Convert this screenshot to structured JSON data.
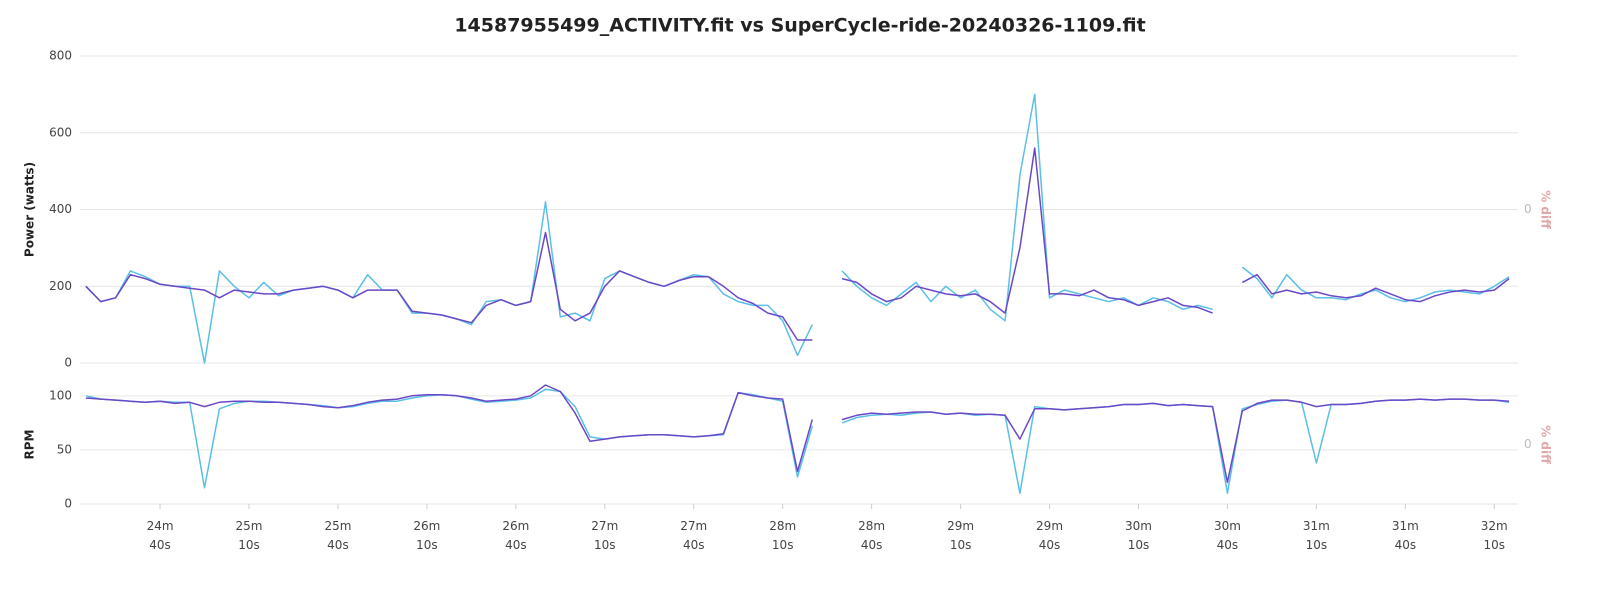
{
  "chart_data": [
    {
      "type": "line",
      "title": "14587955499_ACTIVITY.fit vs SuperCycle-ride-20240326-1109.fit",
      "y_label": "Power (watts)",
      "y2_label": "% diff",
      "x": [
        1455,
        1460,
        1465,
        1470,
        1475,
        1480,
        1485,
        1490,
        1495,
        1500,
        1505,
        1510,
        1515,
        1520,
        1525,
        1530,
        1535,
        1540,
        1545,
        1550,
        1555,
        1560,
        1565,
        1570,
        1575,
        1580,
        1585,
        1590,
        1595,
        1600,
        1605,
        1610,
        1615,
        1620,
        1625,
        1630,
        1635,
        1640,
        1645,
        1650,
        1655,
        1660,
        1665,
        1670,
        1675,
        1680,
        1685,
        1690,
        1695,
        1700,
        1705,
        1710,
        1715,
        1720,
        1725,
        1730,
        1735,
        1740,
        1745,
        1750,
        1755,
        1760,
        1765,
        1770,
        1775,
        1780,
        1785,
        1790,
        1795,
        1800,
        1805,
        1810,
        1815,
        1820,
        1825,
        1830,
        1835,
        1840,
        1845,
        1850,
        1855,
        1860,
        1865,
        1870,
        1875,
        1880,
        1885,
        1890,
        1895,
        1900,
        1905,
        1910,
        1915,
        1920,
        1925,
        1930,
        1935
      ],
      "series": [
        {
          "color": "#5bbfe6",
          "values": [
            200,
            160,
            170,
            240,
            225,
            205,
            200,
            200,
            0,
            240,
            200,
            170,
            210,
            175,
            190,
            195,
            200,
            190,
            170,
            230,
            190,
            190,
            130,
            130,
            125,
            115,
            100,
            160,
            165,
            150,
            160,
            420,
            120,
            130,
            110,
            220,
            240,
            225,
            210,
            200,
            215,
            230,
            225,
            180,
            160,
            150,
            150,
            110,
            20,
            100,
            null,
            240,
            200,
            170,
            150,
            180,
            210,
            160,
            200,
            170,
            190,
            140,
            110,
            490,
            700,
            170,
            190,
            180,
            170,
            160,
            170,
            150,
            170,
            160,
            140,
            150,
            140,
            null,
            250,
            220,
            170,
            230,
            190,
            170,
            170,
            165,
            180,
            190,
            170,
            160,
            170,
            185,
            190,
            185,
            180,
            200,
            225
          ]
        },
        {
          "color": "#6b48c8",
          "values": [
            200,
            160,
            170,
            230,
            220,
            205,
            200,
            195,
            190,
            170,
            190,
            185,
            180,
            180,
            190,
            195,
            200,
            190,
            170,
            190,
            190,
            190,
            135,
            130,
            125,
            115,
            105,
            150,
            165,
            150,
            160,
            340,
            140,
            110,
            130,
            200,
            240,
            225,
            210,
            200,
            215,
            225,
            225,
            200,
            170,
            155,
            130,
            120,
            60,
            60,
            null,
            220,
            210,
            180,
            160,
            170,
            200,
            190,
            180,
            175,
            180,
            160,
            130,
            300,
            560,
            180,
            180,
            175,
            190,
            170,
            165,
            150,
            160,
            170,
            150,
            145,
            130,
            null,
            210,
            230,
            180,
            190,
            180,
            185,
            175,
            170,
            175,
            195,
            180,
            165,
            160,
            175,
            185,
            190,
            185,
            190,
            220
          ]
        }
      ],
      "xlim": [
        1453,
        1938
      ],
      "ylim": [
        0,
        800
      ],
      "yticks": [
        0,
        200,
        400,
        600,
        800
      ],
      "y2lim": [
        -100,
        100
      ],
      "y2ticks": [
        0
      ],
      "grid": true
    },
    {
      "type": "line",
      "y_label": "RPM",
      "y2_label": "% diff",
      "x": [
        1455,
        1460,
        1465,
        1470,
        1475,
        1480,
        1485,
        1490,
        1495,
        1500,
        1505,
        1510,
        1515,
        1520,
        1525,
        1530,
        1535,
        1540,
        1545,
        1550,
        1555,
        1560,
        1565,
        1570,
        1575,
        1580,
        1585,
        1590,
        1595,
        1600,
        1605,
        1610,
        1615,
        1620,
        1625,
        1630,
        1635,
        1640,
        1645,
        1650,
        1655,
        1660,
        1665,
        1670,
        1675,
        1680,
        1685,
        1690,
        1695,
        1700,
        1705,
        1710,
        1715,
        1720,
        1725,
        1730,
        1735,
        1740,
        1745,
        1750,
        1755,
        1760,
        1765,
        1770,
        1775,
        1780,
        1785,
        1790,
        1795,
        1800,
        1805,
        1810,
        1815,
        1820,
        1825,
        1830,
        1835,
        1840,
        1845,
        1850,
        1855,
        1860,
        1865,
        1870,
        1875,
        1880,
        1885,
        1890,
        1895,
        1900,
        1905,
        1910,
        1915,
        1920,
        1925,
        1930,
        1935
      ],
      "series": [
        {
          "color": "#5bbfe6",
          "values": [
            100,
            97,
            96,
            95,
            94,
            95,
            94,
            94,
            15,
            88,
            93,
            95,
            95,
            94,
            93,
            92,
            91,
            89,
            90,
            93,
            95,
            95,
            98,
            100,
            101,
            100,
            97,
            94,
            95,
            96,
            98,
            106,
            104,
            90,
            62,
            60,
            62,
            63,
            64,
            64,
            63,
            62,
            63,
            64,
            103,
            101,
            98,
            95,
            25,
            72,
            null,
            75,
            80,
            82,
            83,
            82,
            84,
            85,
            83,
            84,
            82,
            83,
            82,
            10,
            90,
            88,
            87,
            88,
            89,
            90,
            92,
            92,
            93,
            91,
            92,
            91,
            90,
            10,
            88,
            92,
            95,
            96,
            94,
            38,
            92,
            92,
            93,
            95,
            96,
            96,
            97,
            96,
            97,
            97,
            96,
            96,
            94
          ]
        },
        {
          "color": "#6b48c8",
          "values": [
            98,
            97,
            96,
            95,
            94,
            95,
            93,
            94,
            90,
            94,
            95,
            95,
            94,
            94,
            93,
            92,
            90,
            89,
            91,
            94,
            96,
            97,
            100,
            101,
            101,
            100,
            98,
            95,
            96,
            97,
            100,
            110,
            104,
            84,
            58,
            60,
            62,
            63,
            64,
            64,
            63,
            62,
            63,
            65,
            103,
            100,
            98,
            97,
            30,
            78,
            null,
            78,
            82,
            84,
            83,
            84,
            85,
            85,
            83,
            84,
            83,
            83,
            82,
            60,
            88,
            88,
            87,
            88,
            89,
            90,
            92,
            92,
            93,
            91,
            92,
            91,
            90,
            20,
            86,
            93,
            96,
            96,
            94,
            90,
            92,
            92,
            93,
            95,
            96,
            96,
            97,
            96,
            97,
            97,
            96,
            96,
            95
          ]
        }
      ],
      "xlim": [
        1453,
        1938
      ],
      "xticks": [
        {
          "value": 1480,
          "label": "24m\n40s"
        },
        {
          "value": 1510,
          "label": "25m\n10s"
        },
        {
          "value": 1540,
          "label": "25m\n40s"
        },
        {
          "value": 1570,
          "label": "26m\n10s"
        },
        {
          "value": 1600,
          "label": "26m\n40s"
        },
        {
          "value": 1630,
          "label": "27m\n10s"
        },
        {
          "value": 1660,
          "label": "27m\n40s"
        },
        {
          "value": 1690,
          "label": "28m\n10s"
        },
        {
          "value": 1720,
          "label": "28m\n40s"
        },
        {
          "value": 1750,
          "label": "29m\n10s"
        },
        {
          "value": 1780,
          "label": "29m\n40s"
        },
        {
          "value": 1810,
          "label": "30m\n10s"
        },
        {
          "value": 1840,
          "label": "30m\n40s"
        },
        {
          "value": 1870,
          "label": "31m\n10s"
        },
        {
          "value": 1900,
          "label": "31m\n40s"
        },
        {
          "value": 1930,
          "label": "32m\n10s"
        }
      ],
      "ylim": [
        0,
        110
      ],
      "yticks": [
        0,
        50,
        100
      ],
      "y2lim": [
        -100,
        100
      ],
      "y2ticks": [
        0
      ],
      "grid": true
    }
  ]
}
